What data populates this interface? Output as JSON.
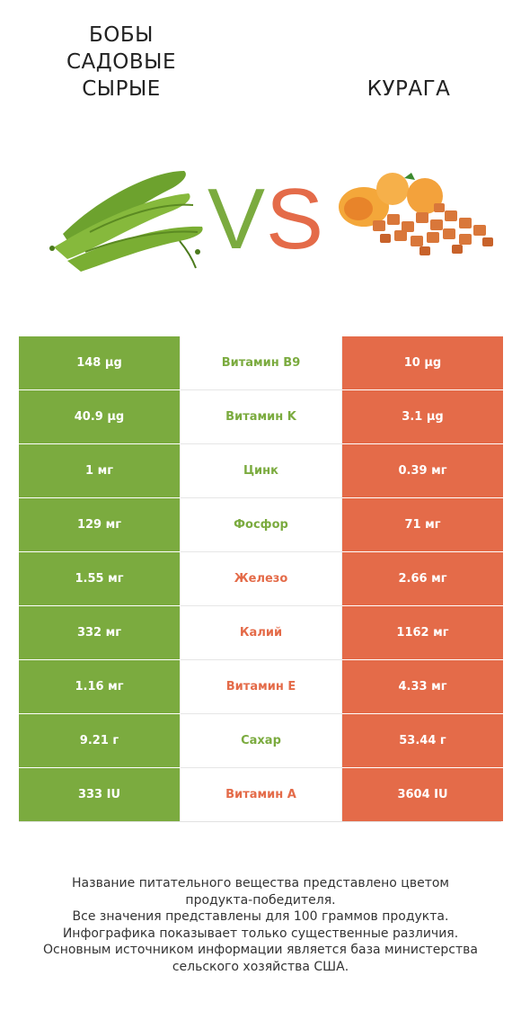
{
  "left_product": {
    "title_lines": [
      "БОБЫ",
      "САДОВЫЕ",
      "СЫРЫЕ"
    ],
    "color": "#7bab3f"
  },
  "right_product": {
    "title": "КУРАГА",
    "color": "#e46b49"
  },
  "vs": {
    "v": "V",
    "s": "S"
  },
  "rows": [
    {
      "left": "148 µg",
      "nutrient": "Витамин B9",
      "right": "10 µg",
      "winner": "left"
    },
    {
      "left": "40.9 µg",
      "nutrient": "Витамин K",
      "right": "3.1 µg",
      "winner": "left"
    },
    {
      "left": "1 мг",
      "nutrient": "Цинк",
      "right": "0.39 мг",
      "winner": "left"
    },
    {
      "left": "129 мг",
      "nutrient": "Фосфор",
      "right": "71 мг",
      "winner": "left"
    },
    {
      "left": "1.55 мг",
      "nutrient": "Железо",
      "right": "2.66 мг",
      "winner": "right"
    },
    {
      "left": "332 мг",
      "nutrient": "Калий",
      "right": "1162 мг",
      "winner": "right"
    },
    {
      "left": "1.16 мг",
      "nutrient": "Витамин E",
      "right": "4.33 мг",
      "winner": "right"
    },
    {
      "left": "9.21 г",
      "nutrient": "Сахар",
      "right": "53.44 г",
      "winner": "left"
    },
    {
      "left": "333 IU",
      "nutrient": "Витамин A",
      "right": "3604 IU",
      "winner": "right"
    }
  ],
  "footer": {
    "lines": [
      "Название питательного вещества представлено цветом",
      "продукта-победителя.",
      "Все значения представлены для 100 граммов продукта.",
      "Инфографика показывает только существенные различия.",
      "Основным источником информации является база министерства",
      "сельского хозяйства США."
    ]
  }
}
